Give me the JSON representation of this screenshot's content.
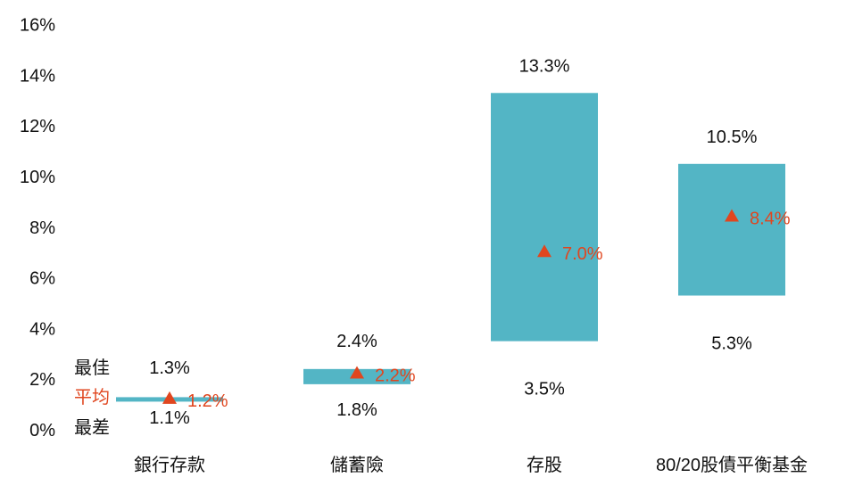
{
  "chart_data": {
    "type": "range-bar",
    "title": "",
    "xlabel": "",
    "ylabel": "",
    "ylim": [
      0,
      16
    ],
    "y_ticks": [
      "0%",
      "2%",
      "4%",
      "6%",
      "8%",
      "10%",
      "12%",
      "14%",
      "16%"
    ],
    "y_tick_values": [
      0,
      2,
      4,
      6,
      8,
      10,
      12,
      14,
      16
    ],
    "grid": false,
    "categories": [
      "銀行存款",
      "儲蓄險",
      "存股",
      "80/20股債平衡基金"
    ],
    "series": [
      {
        "name": "最佳",
        "values": [
          1.3,
          2.4,
          13.3,
          10.5
        ]
      },
      {
        "name": "平均",
        "values": [
          1.2,
          2.2,
          7.0,
          8.4
        ]
      },
      {
        "name": "最差",
        "values": [
          1.1,
          1.8,
          3.5,
          5.3
        ]
      }
    ],
    "best_labels": [
      "1.3%",
      "2.4%",
      "13.3%",
      "10.5%"
    ],
    "avg_labels": [
      "1.2%",
      "2.2%",
      "7.0%",
      "8.4%"
    ],
    "worst_labels": [
      "1.1%",
      "1.8%",
      "3.5%",
      "5.3%"
    ],
    "legend": {
      "best": "最佳",
      "avg": "平均",
      "worst": "最差"
    },
    "marker_symbol": "▲",
    "colors": {
      "bar": "#53b5c5",
      "avg": "#e0461f",
      "text": "#111111"
    }
  }
}
